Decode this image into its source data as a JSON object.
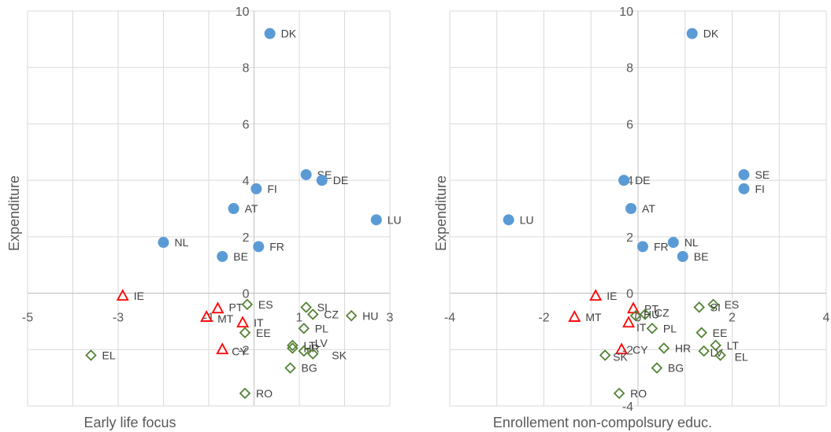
{
  "chart_data": [
    {
      "type": "scatter",
      "xlabel": "Early life focus",
      "ylabel": "Expenditure",
      "xlim": [
        -5,
        3
      ],
      "ylim": [
        -4,
        10
      ],
      "x_ticks": [
        -5,
        -3,
        -1,
        1,
        3
      ],
      "y_ticks": [
        -2,
        0,
        2,
        4,
        6,
        8,
        10
      ],
      "grid": true,
      "series": [
        {
          "marker": "circle",
          "color": "#5b9bd5",
          "points": [
            {
              "label": "DK",
              "x": 0.35,
              "y": 9.2
            },
            {
              "label": "SE",
              "x": 1.15,
              "y": 4.2
            },
            {
              "label": "DE",
              "x": 1.5,
              "y": 4.0
            },
            {
              "label": "FI",
              "x": 0.05,
              "y": 3.7
            },
            {
              "label": "AT",
              "x": -0.45,
              "y": 3.0
            },
            {
              "label": "LU",
              "x": 2.7,
              "y": 2.6
            },
            {
              "label": "NL",
              "x": -2.0,
              "y": 1.8
            },
            {
              "label": "FR",
              "x": 0.1,
              "y": 1.65
            },
            {
              "label": "BE",
              "x": -0.7,
              "y": 1.3
            }
          ]
        },
        {
          "marker": "triangle",
          "color": "#ff0000",
          "points": [
            {
              "label": "IE",
              "x": -2.9,
              "y": -0.1
            },
            {
              "label": "PT",
              "x": -0.8,
              "y": -0.55
            },
            {
              "label": "MT",
              "x": -1.05,
              "y": -0.85
            },
            {
              "label": "IT",
              "x": -0.25,
              "y": -1.05
            },
            {
              "label": "CY",
              "x": -0.7,
              "y": -2.0
            }
          ]
        },
        {
          "marker": "diamond",
          "color": "#548235",
          "points": [
            {
              "label": "ES",
              "x": -0.15,
              "y": -0.4
            },
            {
              "label": "SI",
              "x": 1.15,
              "y": -0.5
            },
            {
              "label": "CZ",
              "x": 1.3,
              "y": -0.75
            },
            {
              "label": "HU",
              "x": 2.15,
              "y": -0.8
            },
            {
              "label": "PL",
              "x": 1.1,
              "y": -1.25
            },
            {
              "label": "EE",
              "x": -0.2,
              "y": -1.4
            },
            {
              "label": "LT",
              "x": 0.85,
              "y": -1.85
            },
            {
              "label": "HR",
              "x": 0.85,
              "y": -1.95
            },
            {
              "label": "LV",
              "x": 1.1,
              "y": -2.05
            },
            {
              "label": "SK",
              "x": 1.3,
              "y": -2.15
            },
            {
              "label": "EL",
              "x": -3.6,
              "y": -2.2
            },
            {
              "label": "BG",
              "x": 0.8,
              "y": -2.65
            },
            {
              "label": "RO",
              "x": -0.2,
              "y": -3.55
            }
          ]
        }
      ]
    },
    {
      "type": "scatter",
      "xlabel": "Enrollement non-compolsury educ.",
      "ylabel": "Expenditure",
      "xlim": [
        -4,
        4
      ],
      "ylim": [
        -4,
        10
      ],
      "x_ticks": [
        -4,
        -2,
        0,
        2,
        4
      ],
      "y_ticks": [
        -4,
        -2,
        0,
        2,
        4,
        6,
        8,
        10
      ],
      "grid": true,
      "series": [
        {
          "marker": "circle",
          "color": "#5b9bd5",
          "points": [
            {
              "label": "DK",
              "x": 1.15,
              "y": 9.2
            },
            {
              "label": "SE",
              "x": 2.25,
              "y": 4.2
            },
            {
              "label": "FI",
              "x": 2.25,
              "y": 3.7
            },
            {
              "label": "DE",
              "x": -0.3,
              "y": 4.0
            },
            {
              "label": "AT",
              "x": -0.15,
              "y": 3.0
            },
            {
              "label": "LU",
              "x": -2.75,
              "y": 2.6
            },
            {
              "label": "NL",
              "x": 0.75,
              "y": 1.8
            },
            {
              "label": "FR",
              "x": 0.1,
              "y": 1.65
            },
            {
              "label": "BE",
              "x": 0.95,
              "y": 1.3
            }
          ]
        },
        {
          "marker": "triangle",
          "color": "#ff0000",
          "points": [
            {
              "label": "IE",
              "x": -0.9,
              "y": -0.1
            },
            {
              "label": "PT",
              "x": -0.1,
              "y": -0.55
            },
            {
              "label": "MT",
              "x": -1.35,
              "y": -0.85
            },
            {
              "label": "IT",
              "x": -0.2,
              "y": -1.05
            },
            {
              "label": "CY",
              "x": -0.35,
              "y": -2.0
            }
          ]
        },
        {
          "marker": "diamond",
          "color": "#548235",
          "points": [
            {
              "label": "ES",
              "x": 1.6,
              "y": -0.4
            },
            {
              "label": "SI",
              "x": 1.3,
              "y": -0.5
            },
            {
              "label": "CZ",
              "x": 0.15,
              "y": -0.75
            },
            {
              "label": "HU",
              "x": -0.05,
              "y": -0.8
            },
            {
              "label": "PL",
              "x": 0.3,
              "y": -1.25
            },
            {
              "label": "EE",
              "x": 1.35,
              "y": -1.4
            },
            {
              "label": "LT",
              "x": 1.65,
              "y": -1.85
            },
            {
              "label": "HR",
              "x": 0.55,
              "y": -1.95
            },
            {
              "label": "LV",
              "x": 1.4,
              "y": -2.05
            },
            {
              "label": "EL",
              "x": 1.75,
              "y": -2.2
            },
            {
              "label": "SK",
              "x": -0.7,
              "y": -2.2
            },
            {
              "label": "BG",
              "x": 0.4,
              "y": -2.65
            },
            {
              "label": "RO",
              "x": -0.4,
              "y": -3.55
            }
          ]
        }
      ]
    }
  ]
}
